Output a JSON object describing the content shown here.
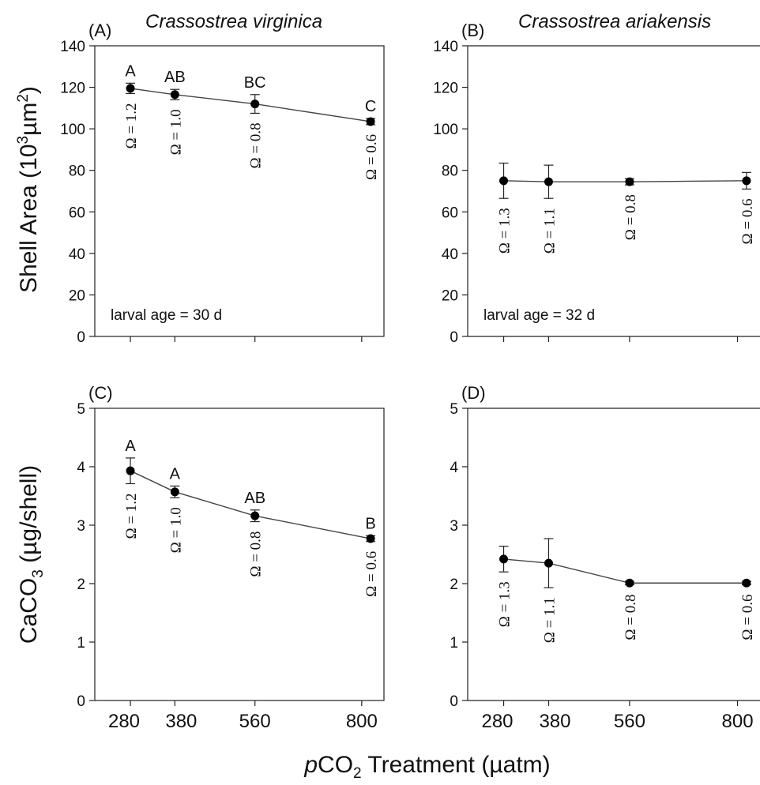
{
  "figure": {
    "ylabel_top": "Shell Area (10³µm²)",
    "ylabel_top_parts": [
      "Shell Area (10",
      "3",
      "µm",
      "2",
      ")"
    ],
    "ylabel_bottom_parts": [
      "CaCO",
      "3",
      " (µg/shell)"
    ],
    "xlabel_parts": [
      "p",
      "CO",
      "2",
      " Treatment (µatm)"
    ]
  },
  "chart_data": [
    {
      "panel": "(A)",
      "title": "Crassostrea virginica",
      "type": "line",
      "xlabel": "pCO2 Treatment (µatm)",
      "ylabel": "Shell Area (10³µm²)",
      "xticks": [
        280,
        380,
        560,
        800
      ],
      "xlim": [
        200,
        850
      ],
      "ylim": [
        0,
        140
      ],
      "yticks": [
        0,
        20,
        40,
        60,
        80,
        100,
        120,
        140
      ],
      "x": [
        280,
        380,
        560,
        820
      ],
      "values": [
        119.5,
        116.5,
        112,
        103.5
      ],
      "errors": [
        2.5,
        2.5,
        4.5,
        1.5
      ],
      "letters": [
        "A",
        "AB",
        "BC",
        "C"
      ],
      "omega": [
        "Ω = 1.2",
        "Ω = 1.0",
        "Ω = 0.8",
        "Ω = 0.6"
      ],
      "annotation": "larval age = 30 d"
    },
    {
      "panel": "(B)",
      "title": "Crassostrea ariakensis",
      "type": "line",
      "xlabel": "pCO2 Treatment (µatm)",
      "ylabel": "Shell Area (10³µm²)",
      "xticks": [
        280,
        380,
        560,
        800
      ],
      "xlim": [
        200,
        850
      ],
      "ylim": [
        0,
        140
      ],
      "yticks": [
        0,
        20,
        40,
        60,
        80,
        100,
        120,
        140
      ],
      "x": [
        280,
        380,
        560,
        820
      ],
      "values": [
        75,
        74.5,
        74.5,
        75
      ],
      "errors": [
        8.5,
        8,
        1.5,
        4
      ],
      "letters": [],
      "omega": [
        "Ω = 1.3",
        "Ω = 1.1",
        "Ω = 0.8",
        "Ω = 0.6"
      ],
      "annotation": "larval age = 32 d"
    },
    {
      "panel": "(C)",
      "title": "",
      "type": "line",
      "xlabel": "pCO2 Treatment (µatm)",
      "ylabel": "CaCO3 (µg/shell)",
      "xticks": [
        280,
        380,
        560,
        800
      ],
      "xlim": [
        200,
        850
      ],
      "ylim": [
        0,
        5
      ],
      "yticks": [
        0,
        1,
        2,
        3,
        4,
        5
      ],
      "x": [
        280,
        380,
        560,
        820
      ],
      "values": [
        3.93,
        3.57,
        3.16,
        2.77
      ],
      "errors": [
        0.22,
        0.1,
        0.1,
        0.05
      ],
      "letters": [
        "A",
        "A",
        "AB",
        "B"
      ],
      "omega": [
        "Ω = 1.2",
        "Ω = 1.0",
        "Ω = 0.8",
        "Ω = 0.6"
      ],
      "annotation": ""
    },
    {
      "panel": "(D)",
      "title": "",
      "type": "line",
      "xlabel": "pCO2 Treatment (µatm)",
      "ylabel": "CaCO3 (µg/shell)",
      "xticks": [
        280,
        380,
        560,
        800
      ],
      "xlim": [
        200,
        850
      ],
      "ylim": [
        0,
        5
      ],
      "yticks": [
        0,
        1,
        2,
        3,
        4,
        5
      ],
      "x": [
        280,
        380,
        560,
        820
      ],
      "values": [
        2.42,
        2.35,
        2.01,
        2.01
      ],
      "errors": [
        0.22,
        0.42,
        0.03,
        0.03
      ],
      "letters": [],
      "omega": [
        "Ω = 1.3",
        "Ω = 1.1",
        "Ω = 0.8",
        "Ω = 0.6"
      ],
      "annotation": ""
    }
  ]
}
